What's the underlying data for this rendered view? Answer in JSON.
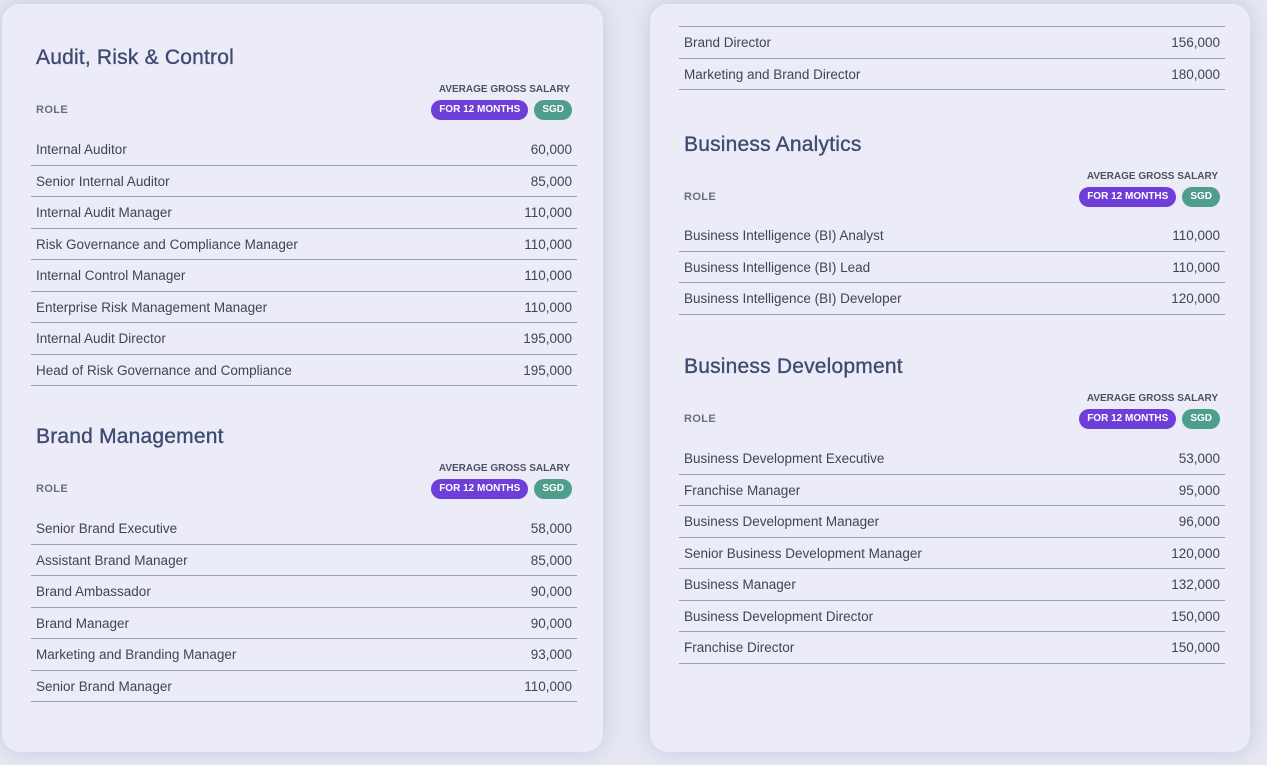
{
  "sections": {
    "audit": {
      "title": "Audit, Risk & Control",
      "role_header": "ROLE",
      "avg_header": "AVERAGE GROSS SALARY",
      "period_badge": "FOR 12 MONTHS",
      "currency_badge": "SGD",
      "rows": [
        {
          "role": "Internal Auditor",
          "salary": "60,000"
        },
        {
          "role": "Senior Internal Auditor",
          "salary": "85,000"
        },
        {
          "role": "Internal Audit Manager",
          "salary": "110,000"
        },
        {
          "role": "Risk Governance and Compliance Manager",
          "salary": "110,000"
        },
        {
          "role": "Internal Control Manager",
          "salary": "110,000"
        },
        {
          "role": "Enterprise Risk Management Manager",
          "salary": "110,000"
        },
        {
          "role": "Internal Audit Director",
          "salary": "195,000"
        },
        {
          "role": "Head of Risk Governance and Compliance",
          "salary": "195,000"
        }
      ]
    },
    "brand": {
      "title": "Brand Management",
      "role_header": "ROLE",
      "avg_header": "AVERAGE GROSS SALARY",
      "period_badge": "FOR 12 MONTHS",
      "currency_badge": "SGD",
      "rows": [
        {
          "role": "Senior Brand Executive",
          "salary": "58,000"
        },
        {
          "role": "Assistant Brand Manager",
          "salary": "85,000"
        },
        {
          "role": "Brand Ambassador",
          "salary": "90,000"
        },
        {
          "role": "Brand Manager",
          "salary": "90,000"
        },
        {
          "role": "Marketing and Branding Manager",
          "salary": "93,000"
        },
        {
          "role": "Senior Brand Manager",
          "salary": "110,000"
        }
      ]
    },
    "brand_cont": {
      "rows": [
        {
          "role": "Brand Director",
          "salary": "156,000"
        },
        {
          "role": "Marketing and Brand Director",
          "salary": "180,000"
        }
      ]
    },
    "analytics": {
      "title": "Business Analytics",
      "role_header": "ROLE",
      "avg_header": "AVERAGE GROSS SALARY",
      "period_badge": "FOR 12 MONTHS",
      "currency_badge": "SGD",
      "rows": [
        {
          "role": "Business Intelligence (BI) Analyst",
          "salary": "110,000"
        },
        {
          "role": "Business Intelligence (BI) Lead",
          "salary": "110,000"
        },
        {
          "role": "Business Intelligence (BI) Developer",
          "salary": "120,000"
        }
      ]
    },
    "bizdev": {
      "title": "Business Development",
      "role_header": "ROLE",
      "avg_header": "AVERAGE GROSS SALARY",
      "period_badge": "FOR 12 MONTHS",
      "currency_badge": "SGD",
      "rows": [
        {
          "role": "Business Development Executive",
          "salary": "53,000"
        },
        {
          "role": "Franchise Manager",
          "salary": "95,000"
        },
        {
          "role": "Business Development Manager",
          "salary": "96,000"
        },
        {
          "role": "Senior Business Development Manager",
          "salary": "120,000"
        },
        {
          "role": "Business Manager",
          "salary": "132,000"
        },
        {
          "role": "Business Development Director",
          "salary": "150,000"
        },
        {
          "role": "Franchise Director",
          "salary": "150,000"
        }
      ]
    }
  }
}
